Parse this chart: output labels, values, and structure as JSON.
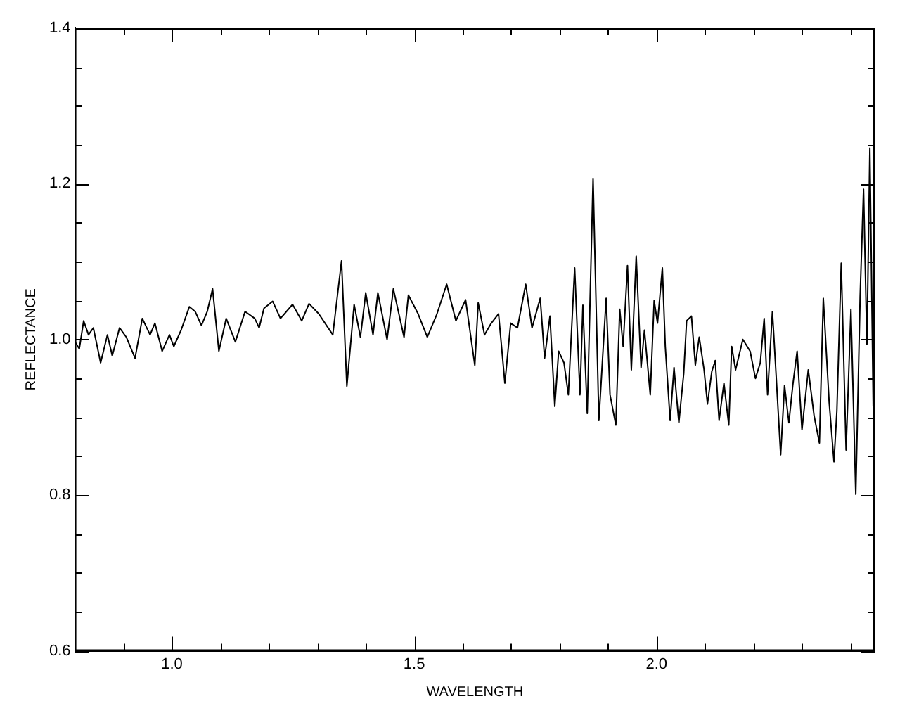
{
  "chart_data": {
    "type": "line",
    "xlabel": "WAVELENGTH",
    "ylabel": "REFLECTANCE",
    "xlim": [
      0.8,
      2.45
    ],
    "ylim": [
      0.6,
      1.4
    ],
    "xticks": [
      {
        "value": 0.9,
        "label": null
      },
      {
        "value": 1,
        "label": "1.0"
      },
      {
        "value": 1.1,
        "label": null
      },
      {
        "value": 1.2,
        "label": null
      },
      {
        "value": 1.3,
        "label": null
      },
      {
        "value": 1.4,
        "label": null
      },
      1.5,
      {
        "value": 1.6,
        "label": null
      },
      {
        "value": 1.7,
        "label": null
      },
      {
        "value": 1.8,
        "label": null
      },
      {
        "value": 1.9,
        "label": null
      },
      {
        "value": 2,
        "label": "2.0"
      },
      {
        "value": 2.1,
        "label": null
      },
      {
        "value": 2.2,
        "label": null
      },
      {
        "value": 2.3,
        "label": null
      },
      {
        "value": 2.4,
        "label": null
      }
    ],
    "yticks": [
      0.6,
      {
        "value": 0.65,
        "label": null
      },
      {
        "value": 0.7,
        "label": null
      },
      {
        "value": 0.75,
        "label": null
      },
      0.8,
      {
        "value": 0.85,
        "label": null
      },
      {
        "value": 0.9,
        "label": null
      },
      {
        "value": 0.95,
        "label": null
      },
      {
        "value": 1,
        "label": "1.0"
      },
      {
        "value": 1.05,
        "label": null
      },
      {
        "value": 1.1,
        "label": null
      },
      {
        "value": 1.15,
        "label": null
      },
      1.2,
      {
        "value": 1.25,
        "label": null
      },
      {
        "value": 1.3,
        "label": null
      },
      {
        "value": 1.35,
        "label": null
      },
      1.4
    ],
    "marker": "none",
    "x": [
      0.8,
      0.809,
      0.818,
      0.828,
      0.838,
      0.853,
      0.867,
      0.877,
      0.892,
      0.906,
      0.924,
      0.939,
      0.955,
      0.965,
      0.98,
      0.995,
      1.004,
      1.019,
      1.036,
      1.048,
      1.061,
      1.073,
      1.084,
      1.097,
      1.112,
      1.131,
      1.151,
      1.171,
      1.18,
      1.19,
      1.208,
      1.224,
      1.249,
      1.268,
      1.283,
      1.303,
      1.332,
      1.35,
      1.361,
      1.376,
      1.389,
      1.4,
      1.415,
      1.425,
      1.444,
      1.457,
      1.479,
      1.488,
      1.508,
      1.527,
      1.547,
      1.567,
      1.586,
      1.606,
      1.625,
      1.632,
      1.645,
      1.659,
      1.674,
      1.687,
      1.699,
      1.713,
      1.73,
      1.743,
      1.76,
      1.769,
      1.78,
      1.79,
      1.798,
      1.809,
      1.818,
      1.831,
      1.842,
      1.848,
      1.857,
      1.869,
      1.881,
      1.896,
      1.904,
      1.916,
      1.924,
      1.931,
      1.94,
      1.948,
      1.958,
      1.968,
      1.975,
      1.987,
      1.995,
      2.002,
      2.012,
      2.018,
      2.028,
      2.036,
      2.046,
      2.056,
      2.062,
      2.072,
      2.08,
      2.088,
      2.098,
      2.105,
      2.114,
      2.121,
      2.129,
      2.139,
      2.149,
      2.155,
      2.163,
      2.178,
      2.193,
      2.204,
      2.214,
      2.222,
      2.229,
      2.239,
      2.246,
      2.256,
      2.264,
      2.273,
      2.281,
      2.29,
      2.3,
      2.313,
      2.325,
      2.336,
      2.344,
      2.356,
      2.366,
      2.372,
      2.381,
      2.391,
      2.401,
      2.411,
      2.42,
      2.427,
      2.434,
      2.44,
      2.447
    ],
    "series": [
      {
        "color": "#000000",
        "values": [
          0.997,
          0.988,
          1.024,
          1.006,
          1.015,
          0.97,
          1.006,
          0.979,
          1.015,
          1.003,
          0.976,
          1.027,
          1.006,
          1.021,
          0.985,
          1.006,
          0.991,
          1.012,
          1.042,
          1.036,
          1.018,
          1.036,
          1.065,
          0.985,
          1.027,
          0.997,
          1.036,
          1.027,
          1.015,
          1.04,
          1.049,
          1.027,
          1.045,
          1.024,
          1.046,
          1.033,
          1.006,
          1.101,
          0.94,
          1.045,
          1.003,
          1.06,
          1.006,
          1.06,
          1.0,
          1.065,
          1.003,
          1.057,
          1.033,
          1.003,
          1.033,
          1.071,
          1.024,
          1.051,
          0.967,
          1.047,
          1.006,
          1.021,
          1.033,
          0.944,
          1.021,
          1.015,
          1.071,
          1.015,
          1.053,
          0.976,
          1.03,
          0.914,
          0.985,
          0.97,
          0.929,
          1.092,
          0.929,
          1.044,
          0.905,
          1.207,
          0.896,
          1.053,
          0.929,
          0.89,
          1.039,
          0.991,
          1.095,
          0.961,
          1.107,
          0.964,
          1.012,
          0.929,
          1.05,
          1.021,
          1.092,
          0.991,
          0.896,
          0.964,
          0.893,
          0.956,
          1.024,
          1.03,
          0.967,
          1.003,
          0.961,
          0.917,
          0.959,
          0.973,
          0.896,
          0.944,
          0.89,
          0.991,
          0.961,
          1.0,
          0.985,
          0.95,
          0.97,
          1.027,
          0.929,
          1.036,
          0.961,
          0.852,
          0.941,
          0.893,
          0.941,
          0.985,
          0.884,
          0.961,
          0.902,
          0.867,
          1.053,
          0.92,
          0.843,
          0.908,
          1.098,
          0.858,
          1.039,
          0.801,
          1.056,
          1.193,
          0.994,
          1.246,
          0.914
        ]
      }
    ]
  }
}
